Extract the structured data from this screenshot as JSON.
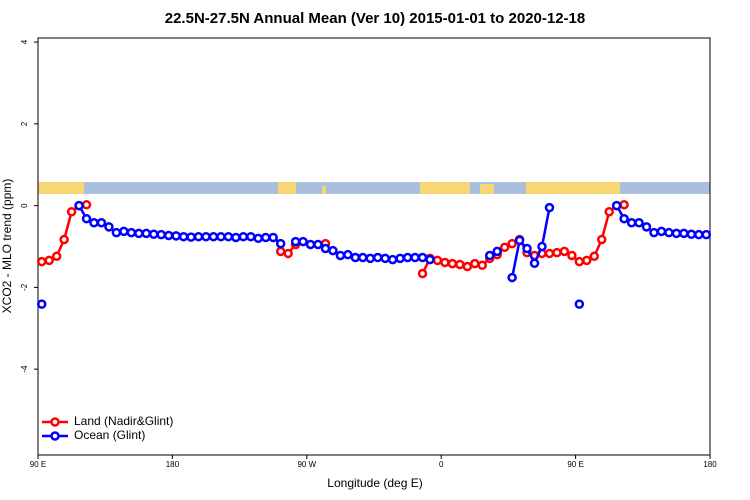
{
  "chart_data": {
    "type": "line",
    "title": "22.5N-27.5N Annual Mean (Ver 10)   2015-01-01 to 2020-12-18",
    "x_label": "Longitude (deg E)",
    "y_label": "XCO2 - MLO trend (ppm)",
    "x": [
      92.5,
      97.5,
      102.5,
      107.5,
      112.5,
      117.5,
      122.5,
      127.5,
      132.5,
      137.5,
      142.5,
      147.5,
      152.5,
      157.5,
      162.5,
      167.5,
      172.5,
      177.5,
      182.5,
      187.5,
      192.5,
      197.5,
      202.5,
      207.5,
      212.5,
      217.5,
      222.5,
      227.5,
      232.5,
      237.5,
      242.5,
      247.5,
      252.5,
      257.5,
      262.5,
      267.5,
      272.5,
      277.5,
      282.5,
      287.5,
      292.5,
      297.5,
      302.5,
      307.5,
      312.5,
      317.5,
      322.5,
      327.5,
      332.5,
      337.5,
      342.5,
      347.5,
      352.5,
      357.5,
      362.5,
      367.5,
      372.5,
      377.5,
      382.5,
      387.5,
      392.5,
      397.5,
      402.5,
      407.5,
      412.5,
      417.5,
      422.5,
      427.5,
      432.5,
      437.5,
      442.5,
      447.5,
      452.5,
      457.5,
      462.5,
      467.5,
      472.5,
      477.5,
      482.5,
      487.5,
      492.5,
      497.5,
      502.5,
      507.5,
      512.5,
      517.5,
      522.5,
      527.5,
      532.5,
      537.5
    ],
    "series": [
      {
        "name": "Land (Nadir&Glint)",
        "color": "#ff0000",
        "values": [
          -1.37,
          -1.34,
          -1.24,
          -0.83,
          -0.15,
          0,
          0.02,
          null,
          null,
          null,
          null,
          null,
          null,
          null,
          null,
          null,
          null,
          null,
          null,
          null,
          null,
          null,
          null,
          null,
          null,
          null,
          null,
          null,
          null,
          null,
          null,
          null,
          -1.12,
          -1.17,
          -0.95,
          null,
          null,
          null,
          -0.93,
          null,
          null,
          null,
          null,
          null,
          null,
          null,
          null,
          null,
          null,
          null,
          null,
          -1.66,
          -1.29,
          -1.34,
          -1.39,
          -1.42,
          -1.44,
          -1.49,
          -1.42,
          -1.46,
          -1.29,
          -1.2,
          -1.02,
          -0.93,
          -0.83,
          -1.15,
          -1.22,
          -1.17,
          -1.17,
          -1.15,
          -1.12,
          -1.22,
          -1.37,
          -1.34,
          -1.24,
          -0.83,
          -0.15,
          0,
          0.02,
          null,
          null,
          null,
          null,
          null,
          null,
          null,
          null,
          null,
          null,
          null
        ]
      },
      {
        "name": "Ocean (Glint)",
        "color": "#0000ff",
        "values": [
          -2.41,
          null,
          null,
          null,
          null,
          0,
          -0.32,
          -0.42,
          -0.42,
          -0.52,
          -0.66,
          -0.63,
          -0.66,
          -0.68,
          -0.68,
          -0.7,
          -0.71,
          -0.73,
          -0.74,
          -0.76,
          -0.77,
          -0.76,
          -0.76,
          -0.76,
          -0.76,
          -0.76,
          -0.78,
          -0.76,
          -0.76,
          -0.8,
          -0.78,
          -0.78,
          -0.93,
          null,
          -0.88,
          -0.88,
          -0.95,
          -0.95,
          -1.05,
          -1.1,
          -1.22,
          -1.2,
          -1.27,
          -1.27,
          -1.29,
          -1.27,
          -1.29,
          -1.32,
          -1.29,
          -1.27,
          -1.27,
          -1.27,
          -1.32,
          null,
          null,
          null,
          null,
          null,
          null,
          null,
          -1.22,
          -1.12,
          null,
          -1.76,
          -0.85,
          -1.05,
          -1.41,
          -1,
          -0.05,
          null,
          null,
          null,
          -2.41,
          null,
          null,
          null,
          null,
          0,
          -0.32,
          -0.42,
          -0.42,
          -0.52,
          -0.66,
          -0.63,
          -0.66,
          -0.68,
          -0.68,
          -0.7,
          -0.71,
          -0.71
        ]
      }
    ],
    "xlim": [
      90,
      540
    ],
    "ylim": [
      -6.1,
      4.1
    ],
    "xticks": [
      {
        "value": 90,
        "label": "90 E"
      },
      180,
      {
        "value": 270,
        "label": "90 W"
      },
      {
        "value": 360,
        "label": "0"
      },
      {
        "value": 450,
        "label": "90 E"
      },
      {
        "value": 540,
        "label": "180"
      }
    ],
    "yticks": [
      -4,
      -2,
      0,
      2,
      4
    ],
    "legend": "bottom-left",
    "grid": false
  }
}
